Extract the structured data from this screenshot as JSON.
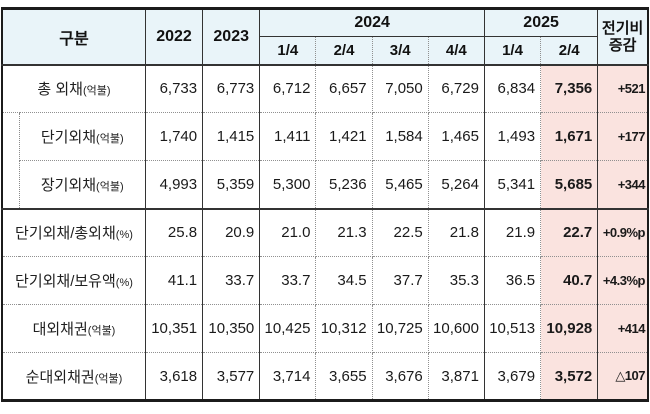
{
  "table": {
    "header": {
      "category_label": "구분",
      "years": [
        "2022",
        "2023"
      ],
      "groups": [
        {
          "label": "2024",
          "quarters": [
            "1/4",
            "2/4",
            "3/4",
            "4/4"
          ]
        },
        {
          "label": "2025",
          "quarters": [
            "1/4",
            "2/4"
          ]
        }
      ],
      "change_line1": "전기비",
      "change_line2": "증감"
    },
    "rows": [
      {
        "label": "총 외채",
        "unit": "(억불)",
        "indent": false,
        "solid_below": false,
        "values": [
          "6,733",
          "6,773",
          "6,712",
          "6,657",
          "7,050",
          "6,729",
          "6,834",
          "7,356",
          "+521"
        ]
      },
      {
        "label": "단기외채",
        "unit": "(억불)",
        "indent": true,
        "solid_below": false,
        "values": [
          "1,740",
          "1,415",
          "1,411",
          "1,421",
          "1,584",
          "1,465",
          "1,493",
          "1,671",
          "+177"
        ]
      },
      {
        "label": "장기외채",
        "unit": "(억불)",
        "indent": true,
        "solid_below": true,
        "values": [
          "4,993",
          "5,359",
          "5,300",
          "5,236",
          "5,465",
          "5,264",
          "5,341",
          "5,685",
          "+344"
        ]
      },
      {
        "label": "단기외채/총외채",
        "unit": "(%)",
        "indent": false,
        "solid_below": false,
        "values": [
          "25.8",
          "20.9",
          "21.0",
          "21.3",
          "22.5",
          "21.8",
          "21.9",
          "22.7",
          "+0.9%p"
        ]
      },
      {
        "label": "단기외채/보유액",
        "unit": "(%)",
        "indent": false,
        "solid_below": false,
        "values": [
          "41.1",
          "33.7",
          "33.7",
          "34.5",
          "37.7",
          "35.3",
          "36.5",
          "40.7",
          "+4.3%p"
        ]
      },
      {
        "label": "대외채권",
        "unit": "(억불)",
        "indent": false,
        "solid_below": false,
        "values": [
          "10,351",
          "10,350",
          "10,425",
          "10,312",
          "10,725",
          "10,600",
          "10,513",
          "10,928",
          "+414"
        ]
      },
      {
        "label": "순대외채권",
        "unit": "(억불)",
        "indent": false,
        "solid_below": false,
        "values": [
          "3,618",
          "3,577",
          "3,714",
          "3,655",
          "3,676",
          "3,871",
          "3,679",
          "3,572",
          "△107"
        ]
      }
    ]
  },
  "colors": {
    "header_bg": "#E9F4F9",
    "highlight_bg": "#FAE3DF",
    "border_dark": "#1b1b1b",
    "border_dotted": "#909090"
  }
}
